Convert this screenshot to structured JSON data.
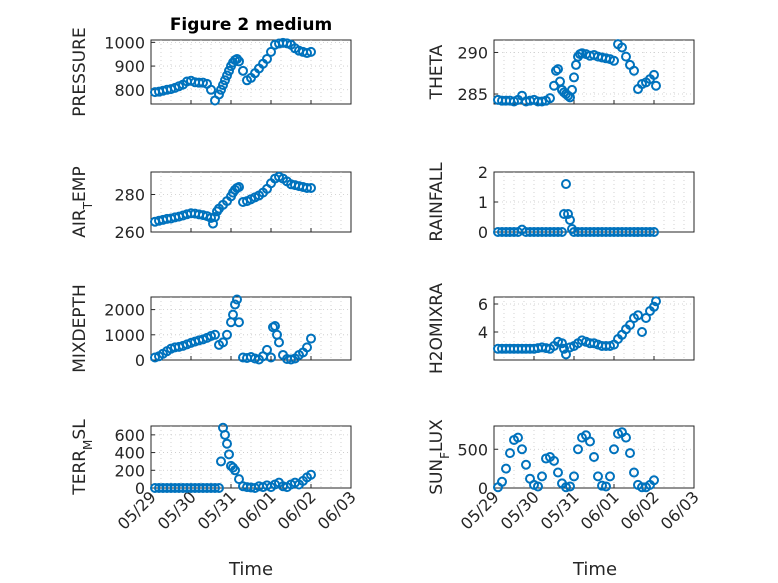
{
  "figure": {
    "title": "Figure 2 medium",
    "xlabel": "Time",
    "marker_color": "#0072BD"
  },
  "chart_data": [
    {
      "type": "scatter",
      "name": "pressure",
      "ylabel_main": "PRESSURE",
      "ylabel_sub": "",
      "ylabel_tail": "",
      "x_date_range": [
        "05/29",
        "06/03"
      ],
      "ylim": [
        740,
        1010
      ],
      "yticks": [
        800,
        900,
        1000
      ],
      "xticks": [
        "05/29",
        "05/30",
        "05/31",
        "06/01",
        "06/02",
        "06/03"
      ],
      "show_xticklabels": false,
      "x": [
        0.1,
        0.2,
        0.3,
        0.4,
        0.5,
        0.6,
        0.7,
        0.8,
        0.9,
        1.0,
        1.1,
        1.2,
        1.3,
        1.4,
        1.5,
        1.6,
        1.7,
        1.75,
        1.8,
        1.85,
        1.9,
        1.95,
        2.0,
        2.05,
        2.1,
        2.15,
        2.2,
        2.3,
        2.4,
        2.5,
        2.6,
        2.7,
        2.8,
        2.9,
        3.0,
        3.1,
        3.2,
        3.3,
        3.4,
        3.5,
        3.6,
        3.7,
        3.8,
        3.9,
        4.0
      ],
      "y": [
        790,
        792,
        796,
        800,
        803,
        808,
        815,
        822,
        835,
        838,
        832,
        830,
        830,
        825,
        800,
        755,
        780,
        800,
        820,
        840,
        860,
        880,
        900,
        915,
        925,
        930,
        920,
        880,
        840,
        850,
        870,
        890,
        910,
        930,
        960,
        990,
        995,
        998,
        996,
        990,
        975,
        965,
        960,
        955,
        960
      ]
    },
    {
      "type": "scatter",
      "name": "theta",
      "ylabel_main": "THETA",
      "ylabel_sub": "",
      "ylabel_tail": "",
      "x_date_range": [
        "05/29",
        "06/03"
      ],
      "ylim": [
        283.8,
        291.5
      ],
      "yticks": [
        285,
        290
      ],
      "xticks": [
        "05/29",
        "05/30",
        "05/31",
        "06/01",
        "06/02",
        "06/03"
      ],
      "show_xticklabels": false,
      "x": [
        0.1,
        0.2,
        0.3,
        0.4,
        0.5,
        0.6,
        0.7,
        0.8,
        0.9,
        1.0,
        1.1,
        1.2,
        1.3,
        1.4,
        1.5,
        1.55,
        1.6,
        1.65,
        1.7,
        1.75,
        1.8,
        1.85,
        1.9,
        1.95,
        2.0,
        2.05,
        2.1,
        2.15,
        2.2,
        2.3,
        2.4,
        2.5,
        2.6,
        2.7,
        2.8,
        2.9,
        3.0,
        3.1,
        3.2,
        3.3,
        3.4,
        3.5,
        3.6,
        3.7,
        3.8,
        3.9,
        4.0,
        4.05
      ],
      "y": [
        284.3,
        284.2,
        284.2,
        284.2,
        284.1,
        284.3,
        284.8,
        284.1,
        284.2,
        284.3,
        284.1,
        284.1,
        284.2,
        284.5,
        286.0,
        287.8,
        288.0,
        286.5,
        285.5,
        285.2,
        285.0,
        284.8,
        284.6,
        285.5,
        287.0,
        288.5,
        289.5,
        289.8,
        289.9,
        289.8,
        289.6,
        289.7,
        289.5,
        289.4,
        289.3,
        289.2,
        289.0,
        291.0,
        290.6,
        289.5,
        288.5,
        287.8,
        285.6,
        286.2,
        286.4,
        286.8,
        287.3,
        286.0
      ]
    },
    {
      "type": "scatter",
      "name": "air-temp",
      "ylabel_main": "AIR",
      "ylabel_sub": "T",
      "ylabel_tail": "EMP",
      "x_date_range": [
        "05/29",
        "06/03"
      ],
      "ylim": [
        260,
        292
      ],
      "yticks": [
        260,
        280
      ],
      "xticks": [
        "05/29",
        "05/30",
        "05/31",
        "06/01",
        "06/02",
        "06/03"
      ],
      "show_xticklabels": false,
      "x": [
        0.1,
        0.2,
        0.3,
        0.4,
        0.5,
        0.6,
        0.7,
        0.8,
        0.9,
        1.0,
        1.1,
        1.2,
        1.3,
        1.4,
        1.5,
        1.55,
        1.6,
        1.65,
        1.7,
        1.8,
        1.9,
        2.0,
        2.05,
        2.1,
        2.15,
        2.2,
        2.3,
        2.4,
        2.5,
        2.6,
        2.7,
        2.8,
        2.9,
        3.0,
        3.1,
        3.2,
        3.3,
        3.4,
        3.5,
        3.6,
        3.7,
        3.8,
        3.9,
        4.0
      ],
      "y": [
        265.5,
        266,
        266.5,
        267,
        267.2,
        267.8,
        268.2,
        268.8,
        269.5,
        270,
        269.8,
        269.4,
        269.0,
        268.5,
        267.5,
        264.5,
        268.0,
        271.0,
        272.5,
        274.5,
        276.5,
        279.0,
        281.0,
        282.5,
        283.5,
        284.0,
        276.0,
        276.5,
        277.5,
        278.5,
        279.5,
        281.0,
        283.0,
        286.0,
        288.5,
        289.5,
        288.5,
        287.0,
        285.5,
        285.0,
        284.5,
        284.0,
        283.5,
        283.5
      ]
    },
    {
      "type": "scatter",
      "name": "rainfall",
      "ylabel_main": "RAINFALL",
      "ylabel_sub": "",
      "ylabel_tail": "",
      "x_date_range": [
        "05/29",
        "06/03"
      ],
      "ylim": [
        0,
        2
      ],
      "yticks": [
        0,
        1,
        2
      ],
      "xticks": [
        "05/29",
        "05/30",
        "05/31",
        "06/01",
        "06/02",
        "06/03"
      ],
      "show_xticklabels": false,
      "x": [
        0.1,
        0.2,
        0.3,
        0.4,
        0.5,
        0.6,
        0.7,
        0.8,
        0.9,
        1.0,
        1.1,
        1.2,
        1.3,
        1.4,
        1.5,
        1.6,
        1.7,
        1.75,
        1.8,
        1.85,
        1.9,
        1.95,
        2.0,
        2.1,
        2.2,
        2.3,
        2.4,
        2.5,
        2.6,
        2.7,
        2.8,
        2.9,
        3.0,
        3.1,
        3.2,
        3.3,
        3.4,
        3.5,
        3.6,
        3.7,
        3.8,
        3.9,
        4.0
      ],
      "y": [
        0,
        0,
        0,
        0,
        0,
        0,
        0.08,
        0,
        0,
        0,
        0,
        0,
        0,
        0,
        0,
        0,
        0,
        0.6,
        1.6,
        0.6,
        0.4,
        0.1,
        0,
        0,
        0,
        0,
        0,
        0,
        0,
        0,
        0,
        0,
        0,
        0,
        0,
        0,
        0,
        0,
        0,
        0,
        0,
        0,
        0
      ]
    },
    {
      "type": "scatter",
      "name": "mixdepth",
      "ylabel_main": "MIXDEPTH",
      "ylabel_sub": "",
      "ylabel_tail": "",
      "x_date_range": [
        "05/29",
        "06/03"
      ],
      "ylim": [
        0,
        2500
      ],
      "yticks": [
        0,
        1000,
        2000
      ],
      "xticks": [
        "05/29",
        "05/30",
        "05/31",
        "06/01",
        "06/02",
        "06/03"
      ],
      "show_xticklabels": false,
      "x": [
        0.1,
        0.2,
        0.3,
        0.4,
        0.5,
        0.6,
        0.7,
        0.8,
        0.9,
        1.0,
        1.1,
        1.2,
        1.3,
        1.4,
        1.5,
        1.6,
        1.7,
        1.8,
        1.9,
        2.0,
        2.05,
        2.1,
        2.15,
        2.2,
        2.3,
        2.4,
        2.5,
        2.6,
        2.7,
        2.8,
        2.9,
        3.0,
        3.05,
        3.1,
        3.15,
        3.2,
        3.3,
        3.4,
        3.5,
        3.6,
        3.7,
        3.8,
        3.9,
        4.0
      ],
      "y": [
        100,
        150,
        250,
        350,
        450,
        500,
        520,
        560,
        620,
        680,
        730,
        780,
        820,
        880,
        950,
        1000,
        600,
        700,
        1000,
        1500,
        1800,
        2200,
        2400,
        1500,
        100,
        80,
        120,
        60,
        20,
        150,
        400,
        100,
        1300,
        1350,
        1000,
        700,
        200,
        40,
        20,
        60,
        200,
        300,
        500,
        850
      ]
    },
    {
      "type": "scatter",
      "name": "h2omixra",
      "ylabel_main": "H2OMIXRA",
      "ylabel_sub": "",
      "ylabel_tail": "",
      "x_date_range": [
        "05/29",
        "06/03"
      ],
      "ylim": [
        2,
        6.5
      ],
      "yticks": [
        4,
        6
      ],
      "xticks": [
        "05/29",
        "05/30",
        "05/31",
        "06/01",
        "06/02",
        "06/03"
      ],
      "show_xticklabels": false,
      "x": [
        0.1,
        0.2,
        0.3,
        0.4,
        0.5,
        0.6,
        0.7,
        0.8,
        0.9,
        1.0,
        1.1,
        1.2,
        1.3,
        1.4,
        1.5,
        1.6,
        1.7,
        1.75,
        1.8,
        1.9,
        2.0,
        2.1,
        2.2,
        2.3,
        2.4,
        2.5,
        2.6,
        2.7,
        2.8,
        2.9,
        3.0,
        3.1,
        3.2,
        3.3,
        3.4,
        3.5,
        3.6,
        3.7,
        3.8,
        3.9,
        4.0,
        4.05
      ],
      "y": [
        2.8,
        2.8,
        2.8,
        2.8,
        2.8,
        2.8,
        2.8,
        2.8,
        2.8,
        2.8,
        2.85,
        2.9,
        2.85,
        2.8,
        3.0,
        3.3,
        3.2,
        2.8,
        2.4,
        2.9,
        3.0,
        3.2,
        3.4,
        3.3,
        3.2,
        3.2,
        3.1,
        3.0,
        3.0,
        3.0,
        3.1,
        3.5,
        3.8,
        4.2,
        4.5,
        5.0,
        5.2,
        4.0,
        5.0,
        5.5,
        5.8,
        6.2
      ]
    },
    {
      "type": "scatter",
      "name": "terr-msl",
      "ylabel_main": "TERR",
      "ylabel_sub": "M",
      "ylabel_tail": "SL",
      "x_date_range": [
        "05/29",
        "06/03"
      ],
      "ylim": [
        0,
        700
      ],
      "yticks": [
        0,
        200,
        400,
        600
      ],
      "xticks": [
        "05/29",
        "05/30",
        "05/31",
        "06/01",
        "06/02",
        "06/03"
      ],
      "show_xticklabels": true,
      "x": [
        0.1,
        0.2,
        0.3,
        0.4,
        0.5,
        0.6,
        0.7,
        0.8,
        0.9,
        1.0,
        1.1,
        1.2,
        1.3,
        1.4,
        1.5,
        1.6,
        1.7,
        1.75,
        1.8,
        1.85,
        1.9,
        1.95,
        2.0,
        2.05,
        2.1,
        2.2,
        2.3,
        2.4,
        2.5,
        2.6,
        2.7,
        2.8,
        2.9,
        3.0,
        3.1,
        3.2,
        3.3,
        3.4,
        3.5,
        3.6,
        3.7,
        3.8,
        3.9,
        4.0
      ],
      "y": [
        0,
        0,
        0,
        0,
        0,
        0,
        0,
        0,
        0,
        0,
        0,
        0,
        0,
        0,
        0,
        0,
        0,
        300,
        680,
        600,
        500,
        380,
        250,
        230,
        200,
        100,
        20,
        10,
        5,
        0,
        20,
        10,
        30,
        10,
        40,
        60,
        20,
        10,
        40,
        60,
        40,
        80,
        120,
        150
      ]
    },
    {
      "type": "scatter",
      "name": "sun-flux",
      "ylabel_main": "SUN",
      "ylabel_sub": "F",
      "ylabel_tail": "LUX",
      "x_date_range": [
        "05/29",
        "06/03"
      ],
      "ylim": [
        0,
        800
      ],
      "yticks": [
        0,
        500
      ],
      "xticks": [
        "05/29",
        "05/30",
        "05/31",
        "06/01",
        "06/02",
        "06/03"
      ],
      "show_xticklabels": true,
      "x": [
        0.1,
        0.2,
        0.3,
        0.4,
        0.5,
        0.6,
        0.7,
        0.8,
        0.9,
        1.0,
        1.1,
        1.2,
        1.3,
        1.4,
        1.5,
        1.6,
        1.7,
        1.8,
        1.9,
        2.0,
        2.1,
        2.2,
        2.3,
        2.4,
        2.5,
        2.6,
        2.7,
        2.8,
        2.9,
        3.0,
        3.1,
        3.2,
        3.3,
        3.4,
        3.5,
        3.6,
        3.7,
        3.8,
        3.9,
        4.0
      ],
      "y": [
        10,
        80,
        250,
        450,
        620,
        650,
        500,
        300,
        120,
        40,
        20,
        150,
        380,
        400,
        350,
        200,
        60,
        10,
        20,
        150,
        500,
        650,
        680,
        600,
        400,
        150,
        30,
        20,
        150,
        500,
        700,
        720,
        650,
        450,
        200,
        40,
        10,
        10,
        40,
        100
      ]
    }
  ]
}
